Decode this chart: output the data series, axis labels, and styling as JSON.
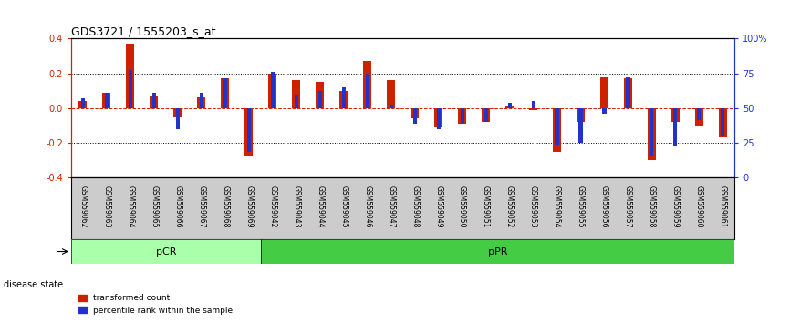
{
  "title": "GDS3721 / 1555203_s_at",
  "samples": [
    "GSM559062",
    "GSM559063",
    "GSM559064",
    "GSM559065",
    "GSM559066",
    "GSM559067",
    "GSM559068",
    "GSM559069",
    "GSM559042",
    "GSM559043",
    "GSM559044",
    "GSM559045",
    "GSM559046",
    "GSM559047",
    "GSM559048",
    "GSM559049",
    "GSM559050",
    "GSM559051",
    "GSM559052",
    "GSM559053",
    "GSM559054",
    "GSM559055",
    "GSM559056",
    "GSM559057",
    "GSM559058",
    "GSM559059",
    "GSM559060",
    "GSM559061"
  ],
  "red_values": [
    0.04,
    0.09,
    0.37,
    0.07,
    -0.05,
    0.06,
    0.17,
    -0.27,
    0.2,
    0.16,
    0.15,
    0.1,
    0.27,
    0.16,
    -0.06,
    -0.11,
    -0.09,
    -0.08,
    0.01,
    -0.01,
    -0.25,
    -0.08,
    0.18,
    0.17,
    -0.3,
    -0.08,
    -0.1,
    -0.17
  ],
  "blue_values": [
    0.055,
    0.09,
    0.22,
    0.09,
    -0.12,
    0.09,
    0.17,
    -0.25,
    0.21,
    0.08,
    0.1,
    0.12,
    0.2,
    0.02,
    -0.09,
    -0.12,
    -0.09,
    -0.08,
    0.03,
    0.04,
    -0.21,
    -0.2,
    -0.03,
    0.18,
    -0.28,
    -0.22,
    -0.07,
    -0.16
  ],
  "pCR_count": 8,
  "pPR_count": 20,
  "ylim": [
    -0.4,
    0.4
  ],
  "yticks_left": [
    -0.4,
    -0.2,
    0.0,
    0.2,
    0.4
  ],
  "yticks_right": [
    0,
    25,
    50,
    75,
    100
  ],
  "yticks_right_labels": [
    "0",
    "25",
    "50",
    "75",
    "100%"
  ],
  "red_color": "#CC2200",
  "blue_color": "#2233CC",
  "pCR_color": "#AAFFAA",
  "pPR_color": "#44CC44",
  "bg_color": "#FFFFFF",
  "tick_label_bg": "#CCCCCC"
}
